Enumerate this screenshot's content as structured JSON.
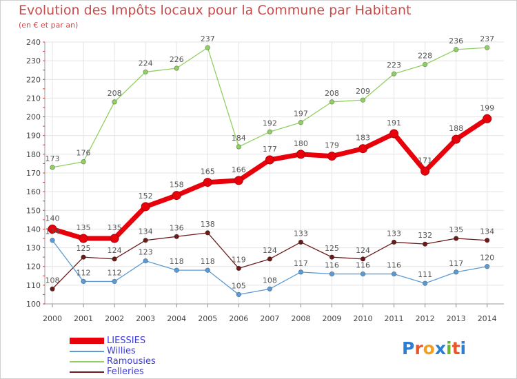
{
  "header": {
    "title": "Evolution des Impôts locaux pour la Commune par Habitant",
    "subtitle": "(en € et par an)"
  },
  "logo": {
    "text": "Proxiti",
    "letters": [
      "P",
      "r",
      "o",
      "x",
      "i",
      "t",
      "i"
    ],
    "colors": [
      "#2a7fd4",
      "#e8562a",
      "#f2a01d",
      "#2a7fd4",
      "#6ab82a",
      "#e8562a",
      "#2a7fd4"
    ]
  },
  "chart_data": {
    "type": "line",
    "title": "Evolution des Impôts locaux pour la Commune par Habitant",
    "subtitle": "(en € et par an)",
    "xlabel": "",
    "ylabel": "",
    "ylim": [
      100,
      240
    ],
    "yticks": [
      100,
      110,
      120,
      130,
      140,
      150,
      160,
      170,
      180,
      190,
      200,
      210,
      220,
      230,
      240
    ],
    "grid": true,
    "legend_position": "bottom-left",
    "categories": [
      "2000",
      "2001",
      "2002",
      "2003",
      "2004",
      "2005",
      "2006",
      "2007",
      "2008",
      "2009",
      "2010",
      "2011",
      "2012",
      "2013",
      "2014"
    ],
    "series": [
      {
        "name": "LIESSIES",
        "color": "#e8000b",
        "values": [
          140,
          135,
          135,
          152,
          158,
          165,
          166,
          177,
          180,
          179,
          183,
          191,
          171,
          188,
          199
        ]
      },
      {
        "name": "Willies",
        "color": "#5b9bd5",
        "values": [
          134,
          112,
          112,
          123,
          118,
          118,
          105,
          108,
          117,
          116,
          116,
          116,
          111,
          117,
          120
        ]
      },
      {
        "name": "Ramousies",
        "color": "#90d060",
        "values": [
          173,
          176,
          208,
          224,
          226,
          237,
          184,
          192,
          197,
          208,
          209,
          223,
          228,
          236,
          237
        ]
      },
      {
        "name": "Felleries",
        "color": "#6b1a1a",
        "values": [
          108,
          125,
          124,
          134,
          136,
          138,
          119,
          124,
          133,
          125,
          124,
          133,
          132,
          135,
          134
        ]
      }
    ]
  }
}
